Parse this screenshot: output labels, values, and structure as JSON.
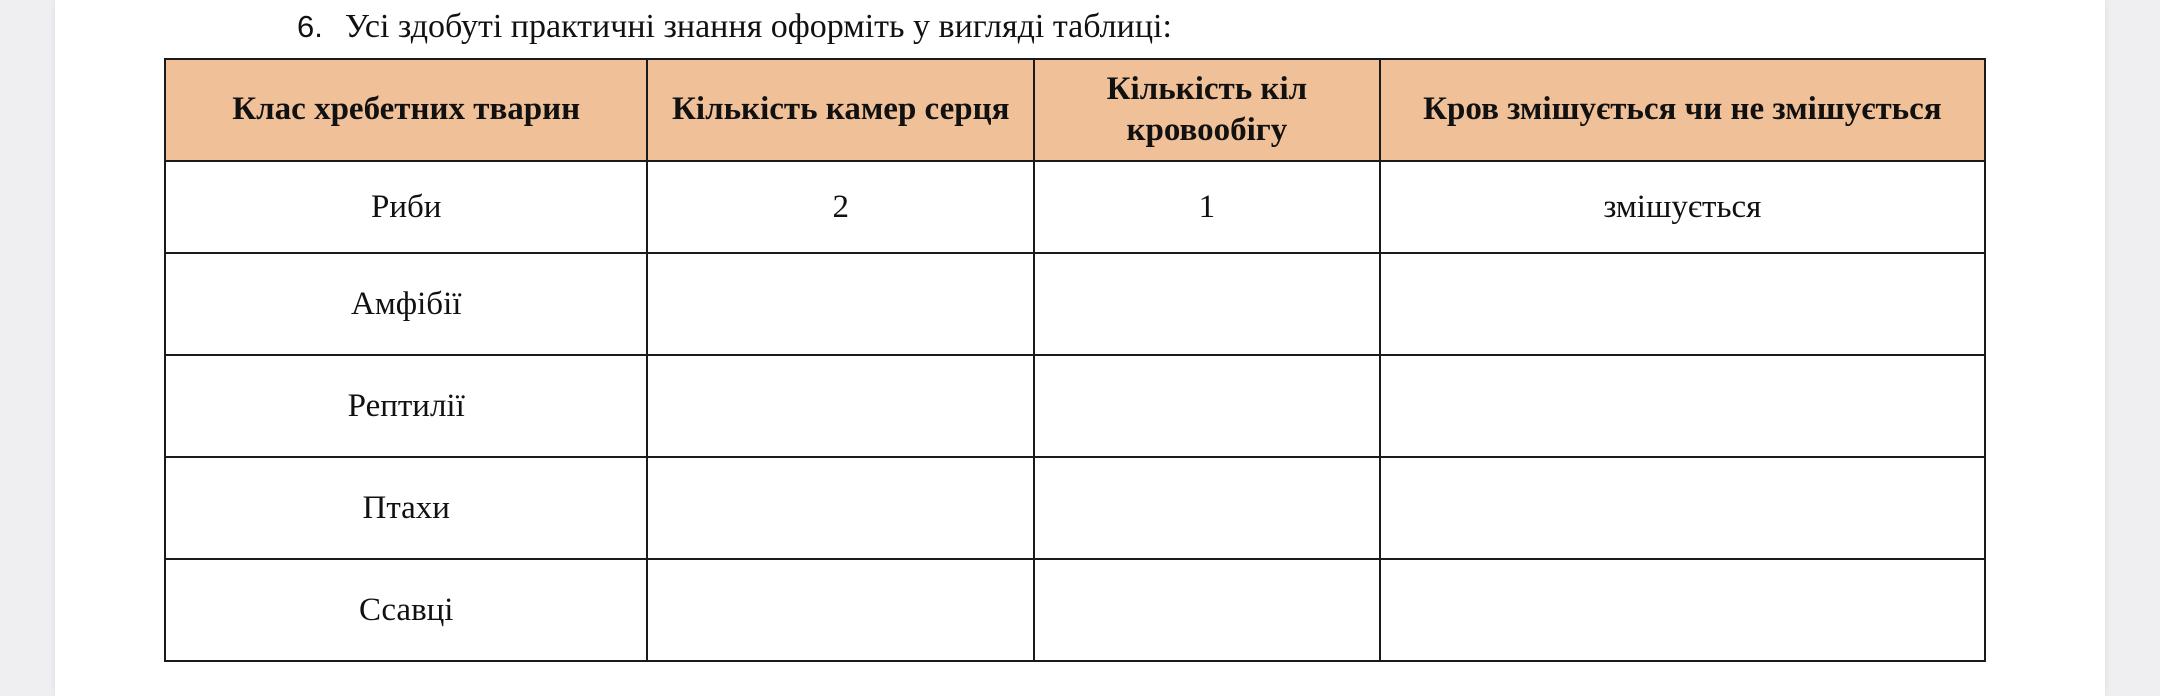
{
  "task": {
    "number": "6.",
    "text": "Усі здобуті практичні знання оформіть у вигляді таблиці:"
  },
  "colors": {
    "header_bg": "#f0c098"
  },
  "table": {
    "headers": [
      "Клас хребетних тварин",
      "Кількість камер серця",
      "Кількість кіл кровообігу",
      "Кров змішується чи не змішується"
    ],
    "rows": [
      [
        "Риби",
        "2",
        "1",
        "змішується"
      ],
      [
        "Амфібії",
        "",
        "",
        ""
      ],
      [
        "Рептилії",
        "",
        "",
        ""
      ],
      [
        "Птахи",
        "",
        "",
        ""
      ],
      [
        "Ссавці",
        "",
        "",
        ""
      ]
    ]
  }
}
